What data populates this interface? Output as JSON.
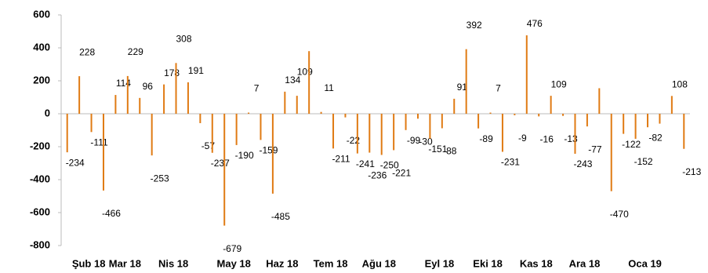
{
  "chart_data": {
    "type": "bar",
    "categories": [
      null,
      "Şub 18",
      null,
      null,
      "Mar 18",
      null,
      null,
      null,
      "Nis 18",
      null,
      null,
      null,
      null,
      "May 18",
      null,
      null,
      null,
      "Haz 18",
      null,
      null,
      null,
      "Tem 18",
      null,
      null,
      null,
      "Ağu 18",
      null,
      null,
      null,
      null,
      "Eyl 18",
      null,
      null,
      null,
      "Eki 18",
      null,
      null,
      null,
      "Kas 18",
      null,
      null,
      null,
      "Ara 18",
      null,
      null,
      null,
      null,
      "Oca 19",
      null,
      null,
      null,
      null
    ],
    "values": [
      -234,
      228,
      -111,
      -466,
      114,
      229,
      96,
      -253,
      178,
      308,
      191,
      -57,
      -237,
      -679,
      -190,
      7,
      -159,
      -485,
      134,
      109,
      380,
      11,
      -211,
      -22,
      -241,
      -236,
      -250,
      -221,
      -99,
      -30,
      -151,
      -88,
      91,
      392,
      -89,
      7,
      -231,
      -9,
      476,
      -16,
      109,
      -13,
      -243,
      -77,
      155,
      -470,
      -122,
      -152,
      -82,
      -60,
      108,
      -213
    ],
    "value_labels": [
      "-234",
      "228",
      "-111",
      "-466",
      "114",
      "229",
      "96",
      "-253",
      "178",
      "308",
      "191",
      "-57",
      "-237",
      "-679",
      "-190",
      "7",
      "-159",
      "-485",
      "134",
      "109",
      null,
      "11",
      "-211",
      "-22",
      "-241",
      "-236",
      "-250",
      "-221",
      "-99",
      "-30",
      "-151",
      "-88",
      "91",
      "392",
      "-89",
      "7",
      "-231",
      "-9",
      "476",
      "-16",
      "109",
      "-13",
      "-243",
      "-77",
      null,
      "-470",
      "-122",
      "-152",
      "-82",
      null,
      "108",
      "-213"
    ],
    "color": "#e07b14",
    "ylim": [
      -800,
      600
    ],
    "yticks": [
      -800,
      -600,
      -400,
      -200,
      0,
      200,
      400,
      600
    ],
    "grid": false
  }
}
